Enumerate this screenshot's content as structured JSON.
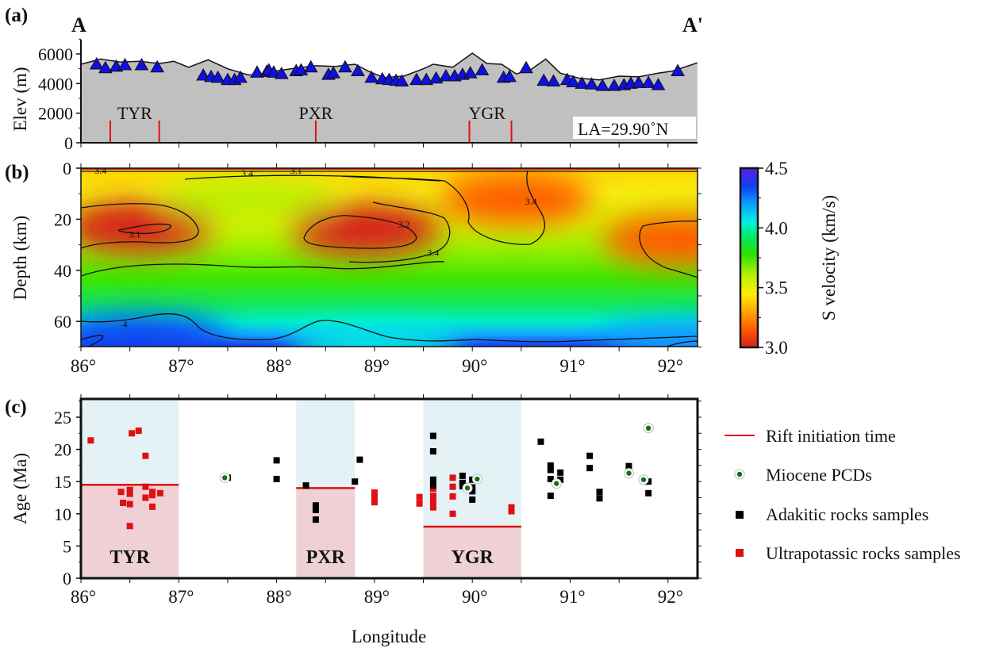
{
  "figure": {
    "x_axis_label": "Longitude",
    "x_ticks": [
      "86°",
      "87°",
      "88°",
      "89°",
      "90°",
      "91°",
      "92°"
    ],
    "x_tick_values": [
      86,
      87,
      88,
      89,
      90,
      91,
      92
    ],
    "x_range": [
      86,
      92.3
    ]
  },
  "chart_data": [
    {
      "panel": "(a)",
      "type": "area",
      "title_left": "A",
      "title_right": "A'",
      "ylabel": "Elev (m)",
      "ylim": [
        0,
        7000
      ],
      "y_ticks": [
        0,
        2000,
        4000,
        6000
      ],
      "y_tick_labels": [
        "0",
        "2000",
        "4000",
        "6000"
      ],
      "annotation": "LA=29.90˚N",
      "topography": {
        "x": [
          86.0,
          86.2,
          86.4,
          86.6,
          86.8,
          86.95,
          87.1,
          87.3,
          87.5,
          87.7,
          87.85,
          88.0,
          88.2,
          88.4,
          88.6,
          88.8,
          88.95,
          89.1,
          89.3,
          89.5,
          89.6,
          89.8,
          90.0,
          90.15,
          90.3,
          90.45,
          90.6,
          90.75,
          90.9,
          91.1,
          91.3,
          91.5,
          91.7,
          91.9,
          92.05,
          92.3
        ],
        "elev": [
          5300,
          5650,
          5450,
          5500,
          5350,
          5500,
          5100,
          5600,
          5000,
          4600,
          4500,
          4850,
          5050,
          5200,
          5150,
          5300,
          4800,
          4400,
          4500,
          5000,
          5300,
          5100,
          6050,
          5350,
          5300,
          4650,
          4950,
          5650,
          4700,
          4350,
          4250,
          4500,
          4450,
          4700,
          4850,
          5400
        ]
      },
      "stations": {
        "x": [
          86.16,
          86.25,
          86.36,
          86.45,
          86.62,
          86.78,
          87.25,
          87.33,
          87.4,
          87.5,
          87.57,
          87.63,
          87.8,
          87.9,
          87.92,
          87.97,
          88.05,
          88.2,
          88.25,
          88.35,
          88.53,
          88.58,
          88.7,
          88.83,
          88.97,
          89.08,
          89.15,
          89.22,
          89.28,
          89.43,
          89.53,
          89.63,
          89.73,
          89.82,
          89.9,
          89.98,
          90.1,
          90.32,
          90.38,
          90.55,
          90.73,
          90.83,
          90.97,
          91.03,
          91.12,
          91.22,
          91.33,
          91.45,
          91.55,
          91.62,
          91.7,
          91.8,
          91.9,
          92.1
        ],
        "elev": [
          5300,
          5050,
          5150,
          5250,
          5250,
          5100,
          4550,
          4450,
          4400,
          4250,
          4250,
          4400,
          4750,
          4800,
          4900,
          4750,
          4650,
          4850,
          4900,
          5100,
          4600,
          4700,
          5100,
          4850,
          4400,
          4300,
          4250,
          4200,
          4150,
          4250,
          4250,
          4350,
          4500,
          4500,
          4600,
          4700,
          4900,
          4400,
          4450,
          5050,
          4200,
          4150,
          4250,
          4100,
          4000,
          3950,
          3850,
          3850,
          3900,
          4000,
          4050,
          4050,
          3900,
          4850
        ]
      },
      "rift_labels": [
        {
          "name": "TYR",
          "x": 86.55,
          "bounds": [
            86.3,
            86.8
          ]
        },
        {
          "name": "PXR",
          "x": 88.4,
          "bounds": [
            88.4
          ]
        },
        {
          "name": "YGR",
          "x": 90.15,
          "bounds": [
            89.97,
            90.4
          ]
        }
      ]
    },
    {
      "panel": "(b)",
      "type": "heatmap",
      "ylabel": "Depth (km)",
      "ylim": [
        70,
        0
      ],
      "y_ticks": [
        0,
        20,
        40,
        60
      ],
      "y_tick_labels": [
        "0",
        "20",
        "40",
        "60"
      ],
      "colorbar": {
        "label": "S velocity (km/s)",
        "range": [
          3.0,
          4.5
        ],
        "ticks": [
          3.0,
          3.5,
          4.0,
          4.5
        ],
        "tick_labels": [
          "3.0",
          "3.5",
          "4.0",
          "4.5"
        ]
      },
      "contour_labels": [
        {
          "value": "3.4",
          "x": 86.2,
          "depth": 1
        },
        {
          "value": "3.4",
          "x": 87.7,
          "depth": 2
        },
        {
          "value": "3.1",
          "x": 88.2,
          "depth": 1
        },
        {
          "value": "3.1",
          "x": 86.55,
          "depth": 26
        },
        {
          "value": "3.2",
          "x": 89.3,
          "depth": 22
        },
        {
          "value": "3.4",
          "x": 89.6,
          "depth": 33
        },
        {
          "value": "3.4",
          "x": 90.6,
          "depth": 13
        },
        {
          "value": "4",
          "x": 86.45,
          "depth": 61
        }
      ],
      "anomalies": [
        {
          "kind": "low",
          "x": 86.6,
          "depth": 23,
          "v": 3.1
        },
        {
          "kind": "low",
          "x": 88.9,
          "depth": 24,
          "v": 3.15
        },
        {
          "kind": "low",
          "x": 90.45,
          "depth": 12,
          "v": 3.3
        },
        {
          "kind": "low",
          "x": 92.1,
          "depth": 28,
          "v": 3.3
        },
        {
          "kind": "high",
          "x": 87.7,
          "depth": 12,
          "v": 3.65
        },
        {
          "kind": "high",
          "x": 86.6,
          "depth": 66,
          "v": 4.4
        },
        {
          "kind": "high",
          "x": 89.0,
          "depth": 69,
          "v": 4.1
        },
        {
          "kind": "high",
          "x": 92.2,
          "depth": 68,
          "v": 4.35
        }
      ]
    },
    {
      "panel": "(c)",
      "type": "scatter",
      "ylabel": "Age (Ma)",
      "ylim": [
        0,
        28
      ],
      "y_ticks": [
        0,
        5,
        10,
        15,
        20,
        25
      ],
      "y_tick_labels": [
        "0",
        "5",
        "10",
        "15",
        "20",
        "25"
      ],
      "rift_zones": [
        {
          "name": "TYR",
          "x_range": [
            86.0,
            87.0
          ],
          "initiation_age": 14.5
        },
        {
          "name": "PXR",
          "x_range": [
            88.2,
            88.8
          ],
          "initiation_age": 14.0
        },
        {
          "name": "YGR",
          "x_range": [
            89.5,
            90.5
          ],
          "initiation_age": 8.0
        }
      ],
      "legend": {
        "position": "right",
        "entries": [
          {
            "key": "rift",
            "label": "Rift initiation time"
          },
          {
            "key": "pcd",
            "label": "Miocene PCDs"
          },
          {
            "key": "adakitic",
            "label": "Adakitic rocks samples"
          },
          {
            "key": "ultrapotassic",
            "label": "Ultrapotassic rocks samples"
          }
        ]
      },
      "series": [
        {
          "name": "Ultrapotassic rocks samples",
          "color": "#e01010",
          "points": [
            [
              86.1,
              21.4
            ],
            [
              86.52,
              22.5
            ],
            [
              86.59,
              22.9
            ],
            [
              86.66,
              19.0
            ],
            [
              86.41,
              13.4
            ],
            [
              86.5,
              13.7
            ],
            [
              86.5,
              13.1
            ],
            [
              86.66,
              14.2
            ],
            [
              86.66,
              12.5
            ],
            [
              86.73,
              13.4
            ],
            [
              86.73,
              12.9
            ],
            [
              86.81,
              13.2
            ],
            [
              86.43,
              11.7
            ],
            [
              86.5,
              11.5
            ],
            [
              86.73,
              11.1
            ],
            [
              86.5,
              8.1
            ],
            [
              89.0,
              13.3
            ],
            [
              89.0,
              12.6
            ],
            [
              89.0,
              11.8
            ],
            [
              89.46,
              12.6
            ],
            [
              89.46,
              11.6
            ],
            [
              89.6,
              13.9
            ],
            [
              89.6,
              12.8
            ],
            [
              89.6,
              11.9
            ],
            [
              89.6,
              11.0
            ],
            [
              89.8,
              15.6
            ],
            [
              89.8,
              14.2
            ],
            [
              89.8,
              12.7
            ],
            [
              89.8,
              10.0
            ],
            [
              90.4,
              11.0
            ],
            [
              90.4,
              10.4
            ]
          ]
        },
        {
          "name": "Adakitic rocks samples",
          "color": "#000000",
          "points": [
            [
              87.5,
              15.6
            ],
            [
              88.0,
              18.3
            ],
            [
              88.0,
              15.4
            ],
            [
              88.3,
              14.4
            ],
            [
              88.4,
              11.3
            ],
            [
              88.4,
              10.6
            ],
            [
              88.4,
              9.1
            ],
            [
              88.8,
              15.0
            ],
            [
              88.85,
              18.4
            ],
            [
              89.6,
              22.1
            ],
            [
              89.6,
              19.7
            ],
            [
              89.6,
              15.3
            ],
            [
              89.6,
              14.4
            ],
            [
              89.9,
              15.9
            ],
            [
              89.9,
              14.8
            ],
            [
              89.9,
              14.3
            ],
            [
              90.0,
              15.3
            ],
            [
              90.0,
              14.1
            ],
            [
              90.0,
              13.5
            ],
            [
              90.0,
              12.2
            ],
            [
              90.7,
              21.2
            ],
            [
              90.8,
              17.5
            ],
            [
              90.8,
              16.8
            ],
            [
              90.8,
              15.4
            ],
            [
              90.8,
              12.8
            ],
            [
              90.9,
              16.4
            ],
            [
              90.9,
              15.3
            ],
            [
              91.2,
              19.0
            ],
            [
              91.2,
              17.1
            ],
            [
              91.3,
              13.4
            ],
            [
              91.3,
              12.4
            ],
            [
              91.6,
              17.4
            ],
            [
              91.6,
              16.9
            ],
            [
              91.8,
              15.0
            ],
            [
              91.8,
              13.2
            ]
          ]
        },
        {
          "name": "Miocene PCDs",
          "color": "#1a6e1a",
          "points": [
            [
              87.47,
              15.6
            ],
            [
              89.95,
              14.0
            ],
            [
              90.05,
              15.4
            ],
            [
              90.86,
              14.7
            ],
            [
              91.6,
              16.3
            ],
            [
              91.75,
              15.3
            ],
            [
              91.8,
              23.3
            ]
          ]
        }
      ]
    }
  ],
  "panel_labels": {
    "a": "(a)",
    "b": "(b)",
    "c": "(c)"
  }
}
